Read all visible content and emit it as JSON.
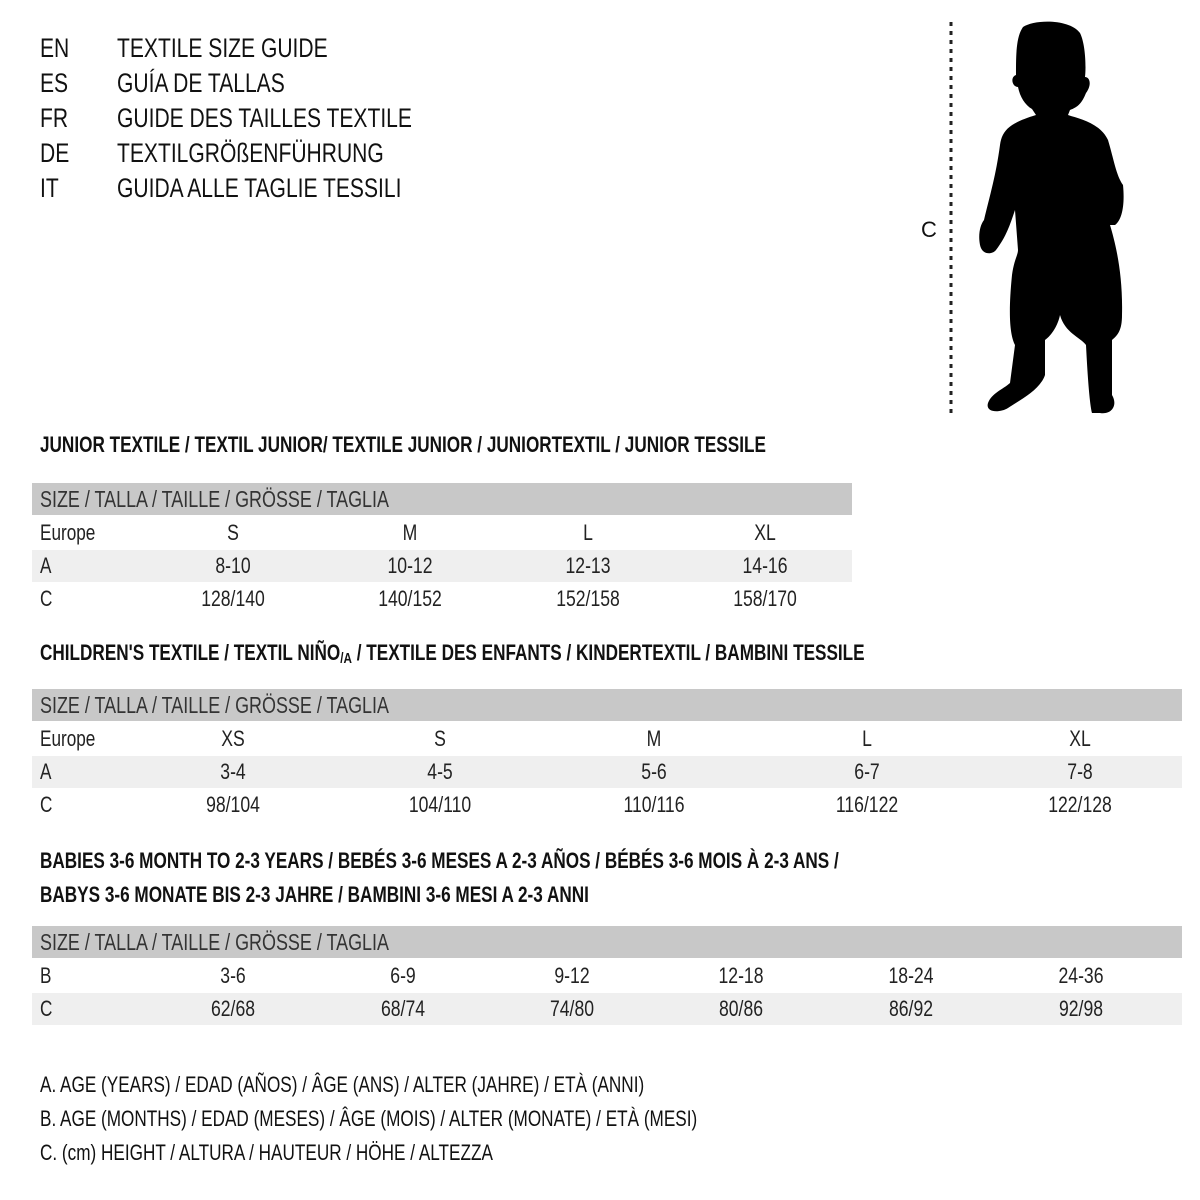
{
  "titles": [
    {
      "code": "EN",
      "text": "TEXTILE SIZE GUIDE"
    },
    {
      "code": "ES",
      "text": "GUÍA DE TALLAS"
    },
    {
      "code": "FR",
      "text": "GUIDE DES TAILLES TEXTILE"
    },
    {
      "code": "DE",
      "text": "TEXTILGRÖßENFÜHRUNG"
    },
    {
      "code": "IT",
      "text": "GUIDA ALLE TAGLIE TESSILI"
    }
  ],
  "figure": {
    "label": "C",
    "icon": "child-silhouette-icon",
    "measure": "dotted-height-line"
  },
  "size_header": "SIZE / TALLA / TAILLE / GRÖSSE / TAGLIA",
  "junior": {
    "heading": "JUNIOR TEXTILE / TEXTIL JUNIOR/ TEXTILE JUNIOR / JUNIORTEXTIL / JUNIOR TESSILE",
    "rows": [
      {
        "label": "Europe",
        "values": [
          "S",
          "M",
          "L",
          "XL"
        ]
      },
      {
        "label": "A",
        "values": [
          "8-10",
          "10-12",
          "12-13",
          "14-16"
        ]
      },
      {
        "label": "C",
        "values": [
          "128/140",
          "140/152",
          "152/158",
          "158/170"
        ]
      }
    ]
  },
  "children": {
    "heading_pre": "CHILDREN'S TEXTILE / TEXTIL NIÑO",
    "heading_sub": "/A",
    "heading_post": " / TEXTILE DES ENFANTS / KINDERTEXTIL / BAMBINI TESSILE",
    "rows": [
      {
        "label": "Europe",
        "values": [
          "XS",
          "S",
          "M",
          "L",
          "XL"
        ]
      },
      {
        "label": "A",
        "values": [
          "3-4",
          "4-5",
          "5-6",
          "6-7",
          "7-8"
        ]
      },
      {
        "label": "C",
        "values": [
          "98/104",
          "104/110",
          "110/116",
          "116/122",
          "122/128"
        ]
      }
    ]
  },
  "babies": {
    "heading_line1": "BABIES 3-6 MONTH TO 2-3 YEARS / BEBÉS 3-6 MESES A 2-3 AÑOS / BÉBÉS 3-6 MOIS À 2-3 ANS /",
    "heading_line2": "BABYS 3-6 MONATE BIS 2-3 JAHRE / BAMBINI 3-6 MESI A 2-3 ANNI",
    "rows": [
      {
        "label": "B",
        "values": [
          "3-6",
          "6-9",
          "9-12",
          "12-18",
          "18-24",
          "24-36"
        ]
      },
      {
        "label": "C",
        "values": [
          "62/68",
          "68/74",
          "74/80",
          "80/86",
          "86/92",
          "92/98"
        ]
      }
    ]
  },
  "legend": [
    "A. AGE (YEARS) / EDAD (AÑOS) / ÂGE (ANS) / ALTER (JAHRE) / ETÀ (ANNI)",
    "B. AGE (MONTHS) / EDAD (MESES) / ÂGE (MOIS) / ALTER (MONATE) / ETÀ (MESI)",
    "C. (cm) HEIGHT / ALTURA / HAUTEUR / HÖHE / ALTEZZA"
  ]
}
